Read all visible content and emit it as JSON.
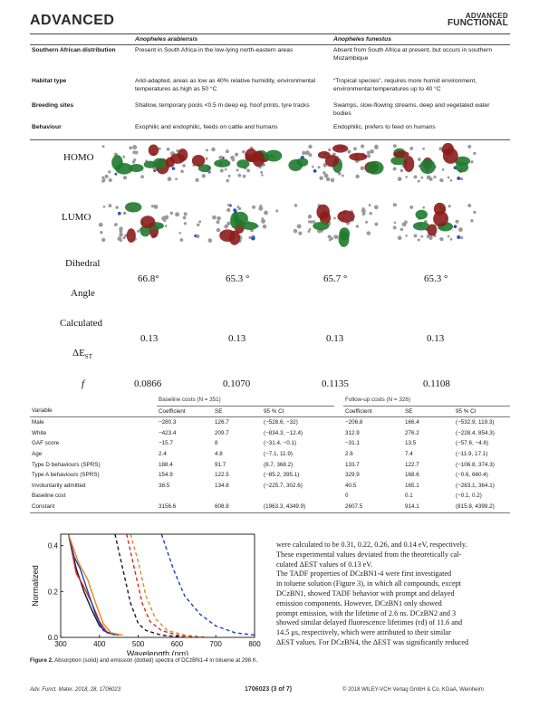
{
  "header": {
    "journal_left": "ADVANCED",
    "journal_right_top": "ADVANCED",
    "journal_right_bottom": "FUNCTIONAL"
  },
  "table1": {
    "columns": [
      "Anopheles arabiensis",
      "Anopheles funestus"
    ],
    "rows": [
      {
        "label": "Southern African distribution",
        "a": "Present in South Africa in the low-lying north-eastern areas",
        "b": "Absent from South Africa at present, but occurs in southern Mozambique"
      },
      {
        "label": "Habitat type",
        "a": "Arid-adapted, areas as low as 40% relative humidity, environmental temperatures as high as 50 °C",
        "b": "“Tropical species”, requires more humid environment, environmental temperatures up to 40 °C"
      },
      {
        "label": "Breeding sites",
        "a": "Shallow, temporary pools <0.5 m deep eg. hoof prints, tyre tracks",
        "b": "Swamps, slow-flowing streams, deep and vegetated water bodies"
      },
      {
        "label": "Behaviour",
        "a": "Exophilic and endophilic, feeds on cattle and humans",
        "b": "Endophilic, prefers to feed on humans"
      }
    ]
  },
  "orbitals": {
    "homo_label": "HOMO",
    "lumo_label": "LUMO",
    "dihedral_label": "Dihedral",
    "angle_label": "Angle",
    "calculated_label": "Calculated",
    "dest_label": "ΔE",
    "dest_sub": "ST",
    "f_label": "f",
    "angles": [
      "66.8°",
      "65.3 °",
      "65.7 °",
      "65.3 °"
    ],
    "dest": [
      "0.13",
      "0.13",
      "0.13",
      "0.13"
    ],
    "f": [
      "0.0866",
      "0.1070",
      "0.1135",
      "0.1108"
    ]
  },
  "table2": {
    "group_a": "Baseline costs (N = 351)",
    "group_b": "Follow-up costs (N = 326)",
    "header": [
      "Variable",
      "Coefficient",
      "SE",
      "95 % CI",
      "Coefficient",
      "SE",
      "95 % CI"
    ],
    "rows": [
      [
        "Male",
        "−280.3",
        "126.7",
        "(−528.6, −32)",
        "−206.8",
        "166.4",
        "(−532.9, 119.3)"
      ],
      [
        "White",
        "−423.4",
        "209.7",
        "(−834.3, −12.4)",
        "312.9",
        "276.2",
        "(−228.4, 854.3)"
      ],
      [
        "GAF score",
        "−15.7",
        "8",
        "(−31.4, −0.1)",
        "−31.1",
        "13.5",
        "(−57.6, −4.6)"
      ],
      [
        "Age",
        "2.4",
        "4.8",
        "(−7.1, 11.9)",
        "2.6",
        "7.4",
        "(−11.9, 17.1)"
      ],
      [
        "Type D behaviours (SPRS)",
        "188.4",
        "91.7",
        "(8.7, 368.2)",
        "133.7",
        "122.7",
        "(−106.8, 374.3)"
      ],
      [
        "Type A behaviours (SPRS)",
        "154.9",
        "122.5",
        "(−85.2, 395.1)",
        "329.9",
        "168.6",
        "(−0.6, 660.4)"
      ],
      [
        "Involuntarily admitted",
        "38.5",
        "134.8",
        "(−225.7, 302.6)",
        "40.5",
        "165.1",
        "(−283.1, 364.1)"
      ],
      [
        "Baseline cost",
        "",
        "",
        "",
        "0",
        "0.1",
        "(−0.1, 0.2)"
      ],
      [
        "Constant",
        "3156.6",
        "608.8",
        "(1963.3, 4349.9)",
        "2607.5",
        "914.1",
        "(815.8, 4399.2)"
      ]
    ]
  },
  "chart_data": {
    "type": "line",
    "xlabel": "Wavelength (nm)",
    "ylabel": "Normalized",
    "xlim": [
      300,
      800
    ],
    "ylim": [
      0,
      0.45
    ],
    "xticks": [
      "300",
      "400",
      "500",
      "600",
      "700",
      "800"
    ],
    "yticks": [
      "0.0",
      "0.2",
      "0.4"
    ],
    "series": [
      {
        "style": "solid",
        "color": "#1a1a1a",
        "x": [
          320,
          340,
          360,
          380,
          400,
          420,
          450
        ],
        "y": [
          0.45,
          0.3,
          0.2,
          0.12,
          0.05,
          0.02,
          0.01
        ]
      },
      {
        "style": "solid",
        "color": "#d62728",
        "x": [
          320,
          340,
          360,
          380,
          400,
          420,
          450
        ],
        "y": [
          0.45,
          0.28,
          0.22,
          0.15,
          0.07,
          0.02,
          0.01
        ]
      },
      {
        "style": "solid",
        "color": "#1f3fbf",
        "x": [
          320,
          335,
          350,
          370,
          390,
          410,
          440
        ],
        "y": [
          0.45,
          0.35,
          0.3,
          0.2,
          0.1,
          0.03,
          0.01
        ]
      },
      {
        "style": "solid",
        "color": "#e08a1a",
        "x": [
          320,
          345,
          370,
          390,
          410,
          430,
          460
        ],
        "y": [
          0.45,
          0.33,
          0.25,
          0.15,
          0.06,
          0.02,
          0.01
        ]
      },
      {
        "style": "dashed",
        "color": "#1a1a1a",
        "x": [
          440,
          460,
          480,
          500,
          520,
          560,
          620
        ],
        "y": [
          0.45,
          0.3,
          0.15,
          0.06,
          0.03,
          0.01,
          0.0
        ]
      },
      {
        "style": "dashed",
        "color": "#d62728",
        "x": [
          470,
          490,
          510,
          530,
          560,
          600,
          660
        ],
        "y": [
          0.45,
          0.3,
          0.15,
          0.07,
          0.03,
          0.01,
          0.0
        ]
      },
      {
        "style": "dashed",
        "color": "#e08a1a",
        "x": [
          480,
          500,
          520,
          545,
          575,
          620,
          680
        ],
        "y": [
          0.45,
          0.33,
          0.18,
          0.08,
          0.03,
          0.01,
          0.0
        ]
      },
      {
        "style": "dashed",
        "color": "#1f3fbf",
        "x": [
          560,
          590,
          620,
          660,
          700,
          750,
          800
        ],
        "y": [
          0.45,
          0.3,
          0.18,
          0.1,
          0.05,
          0.02,
          0.01
        ]
      }
    ]
  },
  "figure_caption": {
    "label": "Figure 2.",
    "text": " Absorption (solid) and emission (dotted) spectra of DCzBN1-4 in toluene at 298 K."
  },
  "body_lines": [
    "were calculated to be 0.31, 0.22, 0.26, and 0.14 eV, respectively.",
    "These experimental values deviated from the theoretically cal-",
    "culated ΔEST values of 0.13 eV.",
    "    The TADF properties of DCzBN1-4 were first investigated",
    "in toluene solution (Figure 3), in which all compounds, except",
    "DCzBN1, showed TADF behavior with prompt and delayed",
    "emission components. However, DCzBN1 only showed",
    "prompt emission, with the lifetime of 2.6 ns. DCzBN2 and 3",
    "showed similar delayed fluorescence lifetimes (τd) of 11.6 and",
    "14.5 μs, respectively, which were attributed to their similar",
    "ΔEST values. For DCzBN4, the ΔEST was significantly reduced"
  ],
  "footer": {
    "left": "Adv. Funct. Mater. 2018, 28, 1706023",
    "center": "1706023  (3 of 7)",
    "right": "© 2018 WILEY-VCH Verlag GmbH & Co. KGaA, Weinheim"
  }
}
